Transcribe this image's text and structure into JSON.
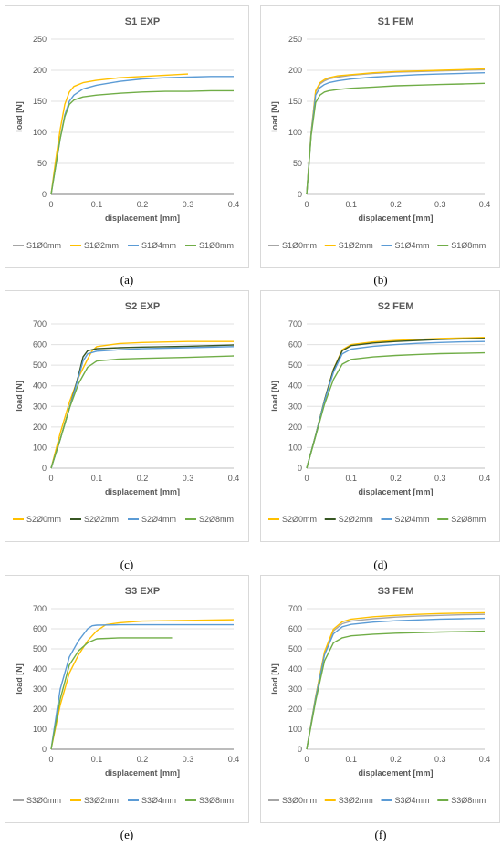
{
  "captions": [
    "(a)",
    "(b)",
    "(c)",
    "(d)",
    "(e)",
    "(f)"
  ],
  "colors": {
    "c0": "#a5a5a5",
    "c2": "#ffc000",
    "c4": "#5b9bd5",
    "c8": "#70ad47",
    "c2dark": "#375623"
  },
  "chart_data": [
    {
      "type": "line",
      "title": "S1 EXP",
      "xlabel": "displacement [mm]",
      "ylabel": "load [N]",
      "xlim": [
        0,
        0.4
      ],
      "ylim": [
        0,
        250
      ],
      "xticks": [
        0,
        0.1,
        0.2,
        0.3,
        0.4
      ],
      "yticks": [
        0,
        50,
        100,
        150,
        200,
        250
      ],
      "grid": "horizontal",
      "legend": "bottom",
      "series": [
        {
          "name": "S1Ø0mm",
          "color": "#a5a5a5",
          "x": [
            0,
            0.4
          ],
          "y": [
            0,
            0
          ]
        },
        {
          "name": "S1Ø2mm",
          "color": "#ffc000",
          "x": [
            0,
            0.01,
            0.02,
            0.03,
            0.04,
            0.05,
            0.07,
            0.1,
            0.15,
            0.2,
            0.25,
            0.3
          ],
          "y": [
            0,
            55,
            105,
            145,
            165,
            174,
            180,
            184,
            188,
            190,
            192,
            194
          ]
        },
        {
          "name": "S1Ø4mm",
          "color": "#5b9bd5",
          "x": [
            0,
            0.01,
            0.02,
            0.03,
            0.04,
            0.05,
            0.07,
            0.1,
            0.15,
            0.2,
            0.25,
            0.3,
            0.35,
            0.4
          ],
          "y": [
            0,
            45,
            90,
            128,
            150,
            160,
            170,
            176,
            182,
            186,
            188,
            189,
            190,
            190
          ]
        },
        {
          "name": "S1Ø8mm",
          "color": "#70ad47",
          "x": [
            0,
            0.01,
            0.02,
            0.03,
            0.04,
            0.05,
            0.07,
            0.1,
            0.15,
            0.2,
            0.25,
            0.3,
            0.35,
            0.4
          ],
          "y": [
            0,
            45,
            90,
            125,
            145,
            152,
            157,
            160,
            163,
            165,
            166,
            166,
            167,
            167
          ]
        }
      ]
    },
    {
      "type": "line",
      "title": "S1 FEM",
      "xlabel": "displacement [mm]",
      "ylabel": "load [N]",
      "xlim": [
        0,
        0.4
      ],
      "ylim": [
        0,
        250
      ],
      "xticks": [
        0,
        0.1,
        0.2,
        0.3,
        0.4
      ],
      "yticks": [
        0,
        50,
        100,
        150,
        200,
        250
      ],
      "grid": "horizontal",
      "legend": "bottom",
      "series": [
        {
          "name": "S1Ø0mm",
          "color": "#a5a5a5",
          "x": [
            0,
            0.01,
            0.02,
            0.03,
            0.04,
            0.05,
            0.07,
            0.1,
            0.15,
            0.2,
            0.25,
            0.3,
            0.35,
            0.4
          ],
          "y": [
            0,
            100,
            165,
            178,
            183,
            186,
            189,
            192,
            195,
            197,
            198,
            199,
            200,
            201
          ]
        },
        {
          "name": "S1Ø2mm",
          "color": "#ffc000",
          "x": [
            0,
            0.01,
            0.02,
            0.03,
            0.04,
            0.05,
            0.07,
            0.1,
            0.15,
            0.2,
            0.25,
            0.3,
            0.35,
            0.4
          ],
          "y": [
            0,
            100,
            167,
            180,
            185,
            188,
            191,
            193,
            196,
            198,
            199,
            200,
            201,
            202
          ]
        },
        {
          "name": "S1Ø4mm",
          "color": "#5b9bd5",
          "x": [
            0,
            0.01,
            0.02,
            0.03,
            0.04,
            0.05,
            0.07,
            0.1,
            0.15,
            0.2,
            0.25,
            0.3,
            0.35,
            0.4
          ],
          "y": [
            0,
            98,
            160,
            172,
            177,
            180,
            183,
            186,
            189,
            191,
            193,
            194,
            195,
            196
          ]
        },
        {
          "name": "S1Ø8mm",
          "color": "#70ad47",
          "x": [
            0,
            0.01,
            0.02,
            0.03,
            0.04,
            0.05,
            0.07,
            0.1,
            0.15,
            0.2,
            0.25,
            0.3,
            0.35,
            0.4
          ],
          "y": [
            0,
            95,
            148,
            160,
            165,
            167,
            169,
            171,
            173,
            175,
            176,
            177,
            178,
            179
          ]
        }
      ]
    },
    {
      "type": "line",
      "title": "S2 EXP",
      "xlabel": "displacement [mm]",
      "ylabel": "load [N]",
      "xlim": [
        0,
        0.4
      ],
      "ylim": [
        0,
        700
      ],
      "xticks": [
        0,
        0.1,
        0.2,
        0.3,
        0.4
      ],
      "yticks": [
        0,
        100,
        200,
        300,
        400,
        500,
        600,
        700
      ],
      "grid": "horizontal",
      "legend": "bottom",
      "series": [
        {
          "name": "S2Ø0mm",
          "color": "#ffc000",
          "x": [
            0,
            0.02,
            0.04,
            0.06,
            0.08,
            0.09,
            0.1,
            0.15,
            0.2,
            0.3,
            0.4
          ],
          "y": [
            0,
            170,
            320,
            440,
            530,
            570,
            590,
            605,
            610,
            615,
            615
          ]
        },
        {
          "name": "S2Ø2mm",
          "color": "#375623",
          "x": [
            0,
            0.02,
            0.04,
            0.06,
            0.07,
            0.08,
            0.1,
            0.15,
            0.2,
            0.3,
            0.4
          ],
          "y": [
            0,
            140,
            290,
            450,
            540,
            570,
            580,
            585,
            588,
            592,
            598
          ]
        },
        {
          "name": "S2Ø4mm",
          "color": "#5b9bd5",
          "x": [
            0,
            0.02,
            0.04,
            0.06,
            0.07,
            0.08,
            0.1,
            0.15,
            0.2,
            0.3,
            0.4
          ],
          "y": [
            0,
            140,
            290,
            440,
            520,
            555,
            568,
            575,
            580,
            585,
            590
          ]
        },
        {
          "name": "S2Ø8mm",
          "color": "#70ad47",
          "x": [
            0,
            0.02,
            0.04,
            0.06,
            0.08,
            0.1,
            0.15,
            0.2,
            0.3,
            0.4
          ],
          "y": [
            0,
            140,
            290,
            410,
            490,
            520,
            530,
            533,
            538,
            545
          ]
        }
      ]
    },
    {
      "type": "line",
      "title": "S2 FEM",
      "xlabel": "displacement [mm]",
      "ylabel": "load [N]",
      "xlim": [
        0,
        0.4
      ],
      "ylim": [
        0,
        700
      ],
      "xticks": [
        0,
        0.1,
        0.2,
        0.3,
        0.4
      ],
      "yticks": [
        0,
        100,
        200,
        300,
        400,
        500,
        600,
        700
      ],
      "grid": "horizontal",
      "legend": "bottom",
      "series": [
        {
          "name": "S2Ø0mm",
          "color": "#ffc000",
          "x": [
            0,
            0.02,
            0.04,
            0.06,
            0.08,
            0.1,
            0.15,
            0.2,
            0.25,
            0.3,
            0.35,
            0.4
          ],
          "y": [
            0,
            160,
            330,
            480,
            575,
            600,
            613,
            620,
            625,
            630,
            632,
            635
          ]
        },
        {
          "name": "S2Ø2mm",
          "color": "#375623",
          "x": [
            0,
            0.02,
            0.04,
            0.06,
            0.08,
            0.1,
            0.15,
            0.2,
            0.25,
            0.3,
            0.35,
            0.4
          ],
          "y": [
            0,
            160,
            330,
            478,
            570,
            595,
            608,
            615,
            620,
            625,
            628,
            630
          ]
        },
        {
          "name": "S2Ø4mm",
          "color": "#5b9bd5",
          "x": [
            0,
            0.02,
            0.04,
            0.06,
            0.08,
            0.1,
            0.15,
            0.2,
            0.25,
            0.3,
            0.35,
            0.4
          ],
          "y": [
            0,
            158,
            325,
            465,
            555,
            578,
            592,
            600,
            606,
            610,
            613,
            615
          ]
        },
        {
          "name": "S2Ø8mm",
          "color": "#70ad47",
          "x": [
            0,
            0.02,
            0.04,
            0.06,
            0.08,
            0.1,
            0.15,
            0.2,
            0.25,
            0.3,
            0.35,
            0.4
          ],
          "y": [
            0,
            155,
            310,
            430,
            505,
            528,
            540,
            547,
            552,
            556,
            558,
            560
          ]
        }
      ]
    },
    {
      "type": "line",
      "title": "S3 EXP",
      "xlabel": "displacement [mm]",
      "ylabel": "load [N]",
      "xlim": [
        0,
        0.4
      ],
      "ylim": [
        0,
        700
      ],
      "xticks": [
        0,
        0.1,
        0.2,
        0.3,
        0.4
      ],
      "yticks": [
        0,
        100,
        200,
        300,
        400,
        500,
        600,
        700
      ],
      "grid": "horizontal",
      "legend": "bottom",
      "series": [
        {
          "name": "S3Ø0mm",
          "color": "#a5a5a5",
          "x": [
            0,
            0.4
          ],
          "y": [
            0,
            0
          ]
        },
        {
          "name": "S3Ø2mm",
          "color": "#ffc000",
          "x": [
            0,
            0.02,
            0.04,
            0.06,
            0.08,
            0.1,
            0.12,
            0.15,
            0.2,
            0.3,
            0.4
          ],
          "y": [
            0,
            220,
            380,
            470,
            540,
            590,
            620,
            630,
            638,
            642,
            645
          ]
        },
        {
          "name": "S3Ø4mm",
          "color": "#5b9bd5",
          "x": [
            0,
            0.02,
            0.04,
            0.06,
            0.08,
            0.09,
            0.1,
            0.15,
            0.2,
            0.3,
            0.4
          ],
          "y": [
            0,
            300,
            460,
            540,
            600,
            615,
            618,
            620,
            620,
            620,
            620
          ]
        },
        {
          "name": "S3Ø8mm",
          "color": "#70ad47",
          "x": [
            0,
            0.02,
            0.04,
            0.06,
            0.08,
            0.1,
            0.15,
            0.2,
            0.265
          ],
          "y": [
            0,
            250,
            420,
            490,
            530,
            550,
            555,
            555,
            555
          ]
        }
      ]
    },
    {
      "type": "line",
      "title": "S3 FEM",
      "xlabel": "displacement [mm]",
      "ylabel": "load [N]",
      "xlim": [
        0,
        0.4
      ],
      "ylim": [
        0,
        700
      ],
      "xticks": [
        0,
        0.1,
        0.2,
        0.3,
        0.4
      ],
      "yticks": [
        0,
        100,
        200,
        300,
        400,
        500,
        600,
        700
      ],
      "grid": "horizontal",
      "legend": "bottom",
      "series": [
        {
          "name": "S3Ø0mm",
          "color": "#a5a5a5",
          "x": [
            0,
            0.02,
            0.04,
            0.06,
            0.08,
            0.1,
            0.15,
            0.2,
            0.25,
            0.3,
            0.35,
            0.4
          ],
          "y": [
            0,
            260,
            480,
            590,
            625,
            638,
            650,
            658,
            663,
            667,
            670,
            672
          ]
        },
        {
          "name": "S3Ø2mm",
          "color": "#ffc000",
          "x": [
            0,
            0.02,
            0.04,
            0.06,
            0.08,
            0.1,
            0.15,
            0.2,
            0.25,
            0.3,
            0.35,
            0.4
          ],
          "y": [
            0,
            262,
            485,
            598,
            635,
            648,
            660,
            667,
            672,
            676,
            678,
            680
          ]
        },
        {
          "name": "S3Ø4mm",
          "color": "#5b9bd5",
          "x": [
            0,
            0.02,
            0.04,
            0.06,
            0.08,
            0.1,
            0.15,
            0.2,
            0.25,
            0.3,
            0.35,
            0.4
          ],
          "y": [
            0,
            255,
            470,
            575,
            610,
            622,
            633,
            640,
            644,
            648,
            650,
            652
          ]
        },
        {
          "name": "S3Ø8mm",
          "color": "#70ad47",
          "x": [
            0,
            0.02,
            0.04,
            0.06,
            0.08,
            0.1,
            0.15,
            0.2,
            0.25,
            0.3,
            0.35,
            0.4
          ],
          "y": [
            0,
            240,
            440,
            530,
            555,
            565,
            573,
            578,
            581,
            584,
            586,
            588
          ]
        }
      ]
    }
  ]
}
